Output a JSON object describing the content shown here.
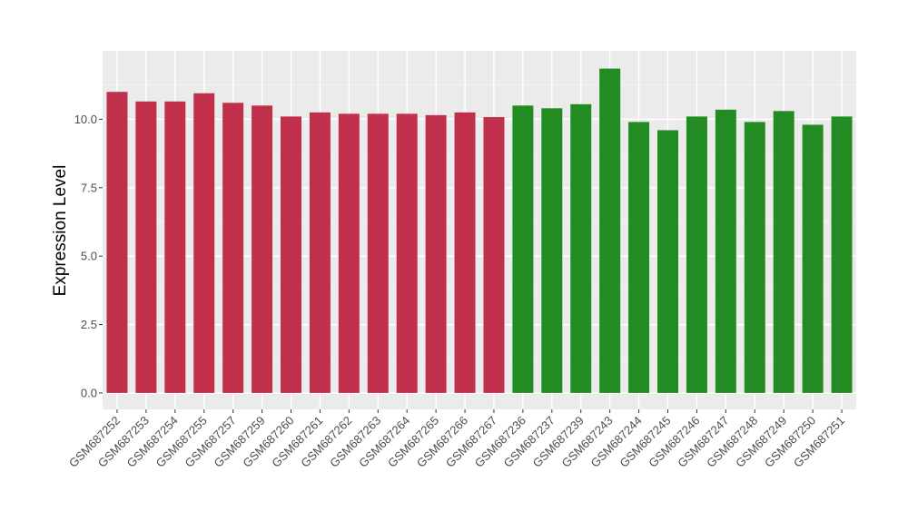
{
  "chart_data": {
    "type": "bar",
    "title": "",
    "xlabel": "",
    "ylabel": "Expression Level",
    "ylim": [
      -0.6,
      12.5
    ],
    "yticks": [
      0.0,
      2.5,
      5.0,
      7.5,
      10.0
    ],
    "ytick_labels": [
      "0.0",
      "2.5",
      "5.0",
      "7.5",
      "10.0"
    ],
    "grid": true,
    "legend": "none",
    "categories": [
      "GSM687252",
      "GSM687253",
      "GSM687254",
      "GSM687255",
      "GSM687257",
      "GSM687259",
      "GSM687260",
      "GSM687261",
      "GSM687262",
      "GSM687263",
      "GSM687264",
      "GSM687265",
      "GSM687266",
      "GSM687267",
      "GSM687236",
      "GSM687237",
      "GSM687239",
      "GSM687243",
      "GSM687244",
      "GSM687245",
      "GSM687246",
      "GSM687247",
      "GSM687248",
      "GSM687249",
      "GSM687250",
      "GSM687251"
    ],
    "values": [
      11.0,
      10.65,
      10.65,
      10.95,
      10.6,
      10.5,
      10.1,
      10.25,
      10.2,
      10.2,
      10.2,
      10.15,
      10.25,
      10.08,
      10.5,
      10.4,
      10.55,
      11.85,
      9.9,
      9.6,
      10.1,
      10.35,
      9.9,
      10.3,
      9.8,
      10.1
    ],
    "group_sizes": [
      14,
      12
    ],
    "group_colors": [
      "#c1304a",
      "#228b22"
    ]
  },
  "colors": {
    "panel_background": "#ebebeb",
    "grid_major": "#ffffff",
    "grid_minor": "#f5f5f5",
    "axis_text": "#4d4d4d",
    "axis_title": "#000000"
  }
}
